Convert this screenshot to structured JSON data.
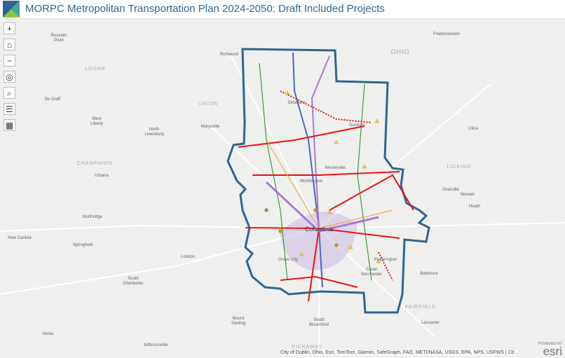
{
  "header": {
    "title": "MORPC Metropolitan Transportation Plan 2024-2050: Draft Included Projects"
  },
  "map": {
    "places": [
      "Russells",
      "Point",
      "Richwood",
      "Fredericktown",
      "OHIO",
      "LOGAN",
      "UNION",
      "De Graff",
      "West",
      "Liberty",
      "North",
      "Lewisburg",
      "Marysville",
      "Delaware",
      "Sunbury",
      "Utica",
      "CHAMPAIGN",
      "Urbana",
      "Westerville",
      "Worthington",
      "LICKING",
      "Granville",
      "Newark",
      "Heath",
      "Northridge",
      "New Carlisle",
      "Springfield",
      "Columbus",
      "London",
      "Grove City",
      "Pickerington",
      "Baltimore",
      "South",
      "Charleston",
      "Mount",
      "Sterling",
      "South",
      "Bloomfield",
      "FAIRFIELD",
      "Lancaster",
      "Xenia",
      "Jeffersonville",
      "PICKAWAY",
      "Canal",
      "Winchester"
    ],
    "attribution": "City of Dublin, Ohio, Esri, TomTom, Garmin, SafeGraph, FAO, METI/NASA, USGS, EPA, NPS, USFWS | Cit...",
    "logo": {
      "caption": "POWERED BY",
      "name": "esri"
    }
  }
}
